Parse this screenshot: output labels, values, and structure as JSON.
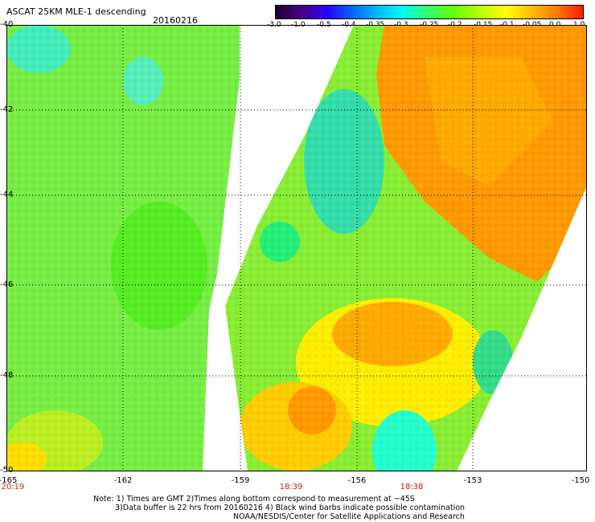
{
  "header": {
    "title": "ASCAT 25KM MLE-1 descending",
    "date": "20160216"
  },
  "colorbar": {
    "labels": [
      "-3.0",
      "-1.0",
      "-0.5",
      "-0.4",
      "-0.35",
      "-0.3",
      "-0.25",
      "-0.2",
      "-0.15",
      "-0.1",
      "-0.05",
      "0.0",
      "1.0"
    ],
    "colors": [
      "#1a0033",
      "#4b0080",
      "#2a00ff",
      "#0066ff",
      "#00bbff",
      "#00ffee",
      "#33ff66",
      "#66ff00",
      "#bbff00",
      "#ffff00",
      "#ffbb00",
      "#ff7700",
      "#ff1a00"
    ]
  },
  "map": {
    "lat_labels": [
      "-40",
      "-42",
      "-44",
      "-46",
      "-48",
      "-50"
    ],
    "lon_labels": [
      "-165",
      "-162",
      "-159",
      "-156",
      "-153",
      "-150"
    ],
    "time_labels": [
      "20:19",
      "18:39",
      "18:38"
    ]
  },
  "notes": {
    "line1": "Note: 1) Times are GMT 2)Times along bottom correspond to measurement at ~45S",
    "line2": "3)Data buffer is 22 hrs from 20160216 4) Black wind barbs indicate possible contamination",
    "line3": "NOAA/NESDIS/Center for Satellite Applications and Research"
  }
}
